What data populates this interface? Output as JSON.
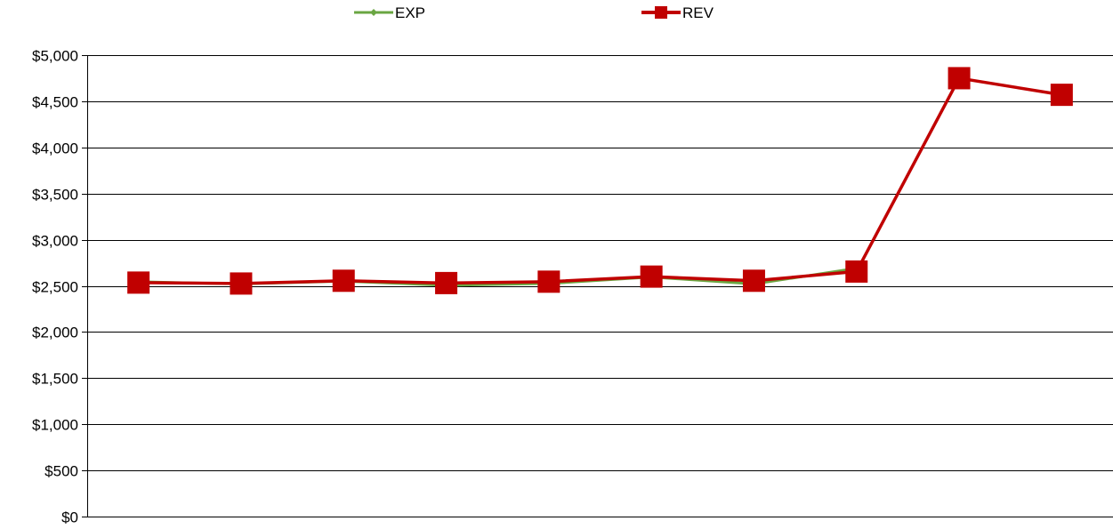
{
  "chart_data": {
    "type": "line",
    "title": "",
    "xlabel": "",
    "ylabel": "",
    "categories": [
      "",
      "",
      "",
      "",
      "",
      "",
      "",
      "",
      "",
      ""
    ],
    "ylim": [
      0,
      5000
    ],
    "y_tick_step": 500,
    "y_tick_labels": [
      "$0",
      "$500",
      "$1,000",
      "$1,500",
      "$2,000",
      "$2,500",
      "$3,000",
      "$3,500",
      "$4,000",
      "$4,500",
      "$5,000"
    ],
    "grid": "horizontal",
    "legend_position": "top",
    "series": [
      {
        "name": "EXP",
        "color": "#6aa642",
        "marker": "diamond",
        "values": [
          2545,
          2520,
          2550,
          2505,
          2525,
          2595,
          2520,
          2690,
          null,
          null
        ]
      },
      {
        "name": "REV",
        "color": "#c00000",
        "marker": "square",
        "values": [
          2535,
          2525,
          2555,
          2530,
          2545,
          2600,
          2555,
          2655,
          4750,
          4570
        ]
      }
    ]
  }
}
